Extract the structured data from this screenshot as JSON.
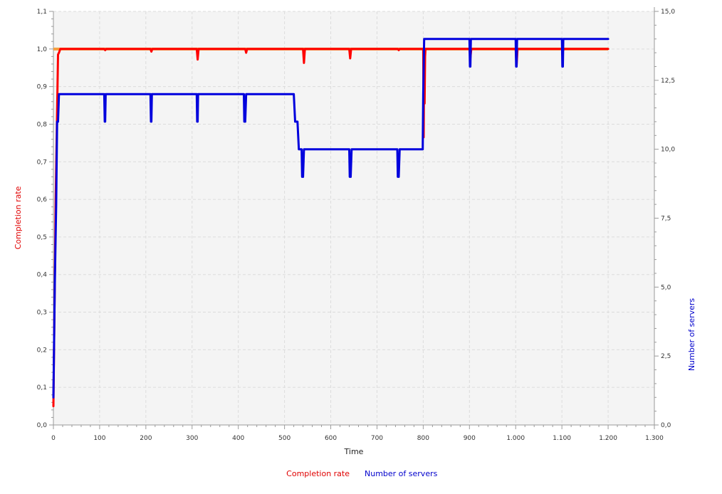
{
  "chart_data": {
    "type": "line",
    "xlabel": "Time",
    "ylabel_left": "Completion rate",
    "ylabel_right": "Number of servers",
    "xlim": [
      0,
      1300
    ],
    "ylim_left": [
      0,
      1.1
    ],
    "ylim_right": [
      0,
      15
    ],
    "grid": true,
    "legend_placement": "bottom-center",
    "x_ticks": [
      0,
      100,
      200,
      300,
      400,
      500,
      600,
      700,
      800,
      900,
      1000,
      1100,
      1200,
      1300
    ],
    "x_tick_labels": [
      "0",
      "100",
      "200",
      "300",
      "400",
      "500",
      "600",
      "700",
      "800",
      "900",
      "1.000",
      "1.100",
      "1.200",
      "1.300"
    ],
    "y_left_ticks": [
      0,
      0.1,
      0.2,
      0.3,
      0.4,
      0.5,
      0.6,
      0.7,
      0.8,
      0.9,
      1.0,
      1.1
    ],
    "y_left_tick_labels": [
      "0,0",
      "0,1",
      "0,2",
      "0,3",
      "0,4",
      "0,5",
      "0,6",
      "0,7",
      "0,8",
      "0,9",
      "1,0",
      "1,1"
    ],
    "y_right_ticks": [
      0,
      2.5,
      5,
      7.5,
      10,
      12.5,
      15
    ],
    "y_right_tick_labels": [
      "0,0",
      "2,5",
      "5,0",
      "7,5",
      "10,0",
      "12,5",
      "15,0"
    ],
    "reference_line": {
      "y": 1.0,
      "color": "#f5a040"
    },
    "series": [
      {
        "name": "Completion rate",
        "axis": "left",
        "color": "#ff0000",
        "x": [
          0,
          5,
          10,
          12,
          15,
          18,
          110,
          112,
          114,
          210,
          212,
          214,
          310,
          312,
          314,
          415,
          417,
          419,
          540,
          542,
          544,
          640,
          642,
          644,
          745,
          747,
          749,
          800,
          801,
          802,
          803,
          804,
          805,
          900,
          902,
          904,
          1000,
          1002,
          1004,
          1100,
          1102,
          1104,
          1200
        ],
        "y": [
          0.05,
          0.6,
          0.985,
          0.99,
          1.0,
          1.0,
          1.0,
          0.997,
          1.0,
          1.0,
          0.993,
          1.0,
          1.0,
          0.972,
          1.0,
          1.0,
          0.99,
          1.0,
          1.0,
          0.963,
          1.0,
          1.0,
          0.975,
          1.0,
          1.0,
          0.997,
          1.0,
          1.0,
          0.765,
          0.97,
          0.855,
          0.98,
          1.0,
          1.0,
          0.976,
          1.0,
          1.0,
          0.955,
          1.0,
          1.0,
          0.995,
          1.0,
          1.0
        ]
      },
      {
        "name": "Number of servers",
        "axis": "right",
        "color": "#0000dd",
        "x": [
          0,
          3,
          6,
          8,
          10,
          12,
          110,
          111,
          112,
          113,
          210,
          211,
          212,
          213,
          310,
          311,
          312,
          313,
          412,
          413,
          415,
          417,
          418,
          520,
          523,
          528,
          531,
          537,
          538,
          540,
          542,
          640,
          641,
          643,
          645,
          744,
          745,
          747,
          749,
          799,
          800,
          802,
          900,
          901,
          902,
          903,
          1000,
          1001,
          1002,
          1003,
          1100,
          1101,
          1102,
          1103,
          1200
        ],
        "y": [
          1,
          5,
          8,
          11,
          11,
          12,
          12,
          11,
          11,
          12,
          12,
          11,
          11,
          12,
          12,
          11,
          11,
          12,
          12,
          11,
          11,
          12,
          12,
          12,
          11,
          11,
          10,
          10,
          9,
          9,
          10,
          10,
          9,
          9,
          10,
          10,
          9,
          9,
          10,
          10,
          12,
          14,
          14,
          13,
          13,
          14,
          14,
          13,
          13,
          14,
          14,
          13,
          13,
          14,
          14
        ]
      }
    ]
  }
}
